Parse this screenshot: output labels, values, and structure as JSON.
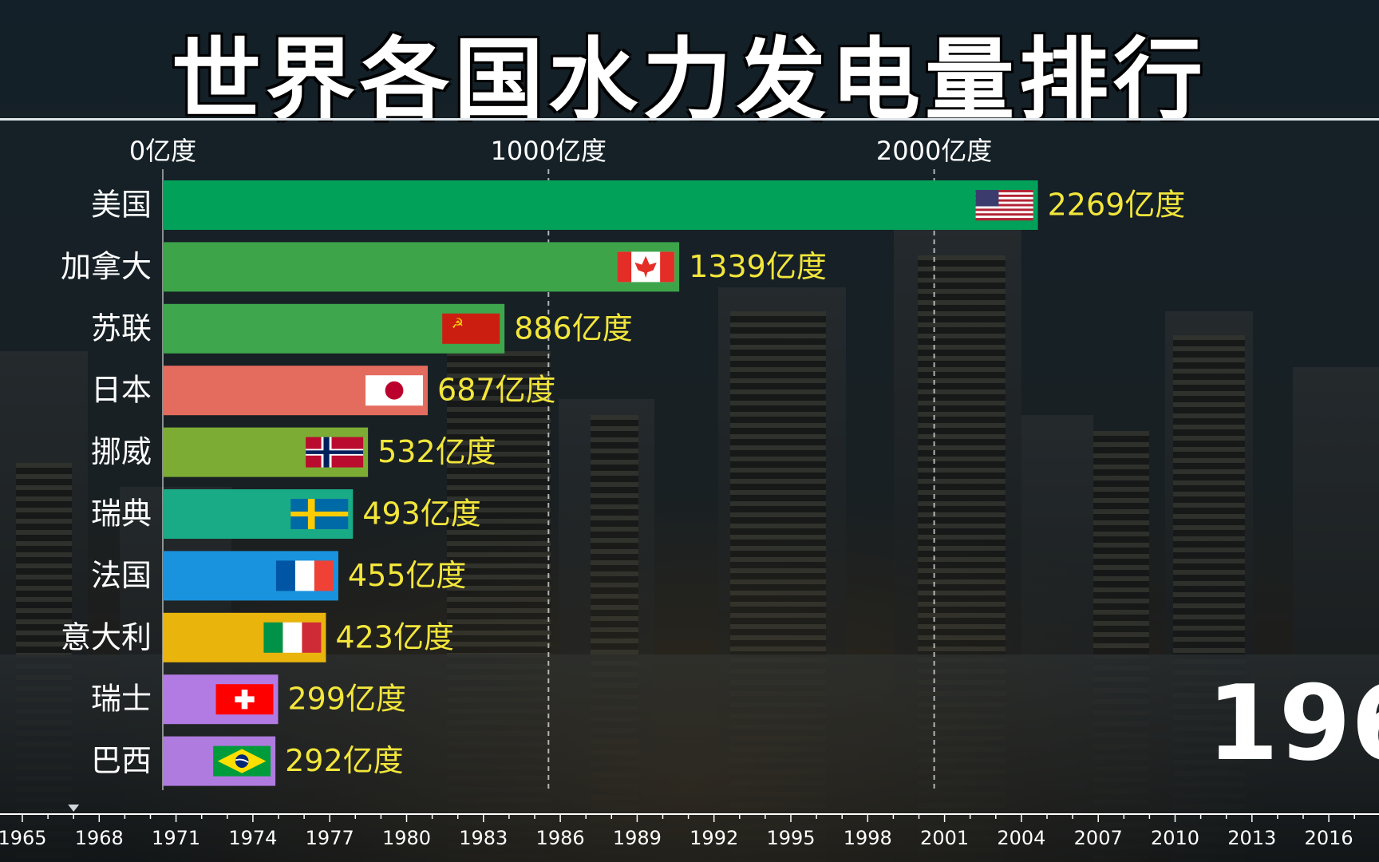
{
  "title": "世界各国水力发电量排行",
  "year": "196",
  "unit": "亿度",
  "chart_data": {
    "type": "bar",
    "title": "世界各国水力发电量排行",
    "orientation": "horizontal",
    "xlabel": "",
    "ylabel": "",
    "xlim": [
      0,
      2500
    ],
    "x_ticks": [
      {
        "value": 0,
        "label": "0亿度"
      },
      {
        "value": 1000,
        "label": "1000亿度"
      },
      {
        "value": 2000,
        "label": "2000亿度"
      }
    ],
    "categories": [
      "美国",
      "加拿大",
      "苏联",
      "日本",
      "挪威",
      "瑞典",
      "法国",
      "意大利",
      "瑞士",
      "巴西"
    ],
    "values": [
      2269,
      1339,
      886,
      687,
      532,
      493,
      455,
      423,
      299,
      292
    ],
    "value_labels": [
      "2269亿度",
      "1339亿度",
      "886亿度",
      "687亿度",
      "532亿度",
      "493亿度",
      "455亿度",
      "423亿度",
      "299亿度",
      "292亿度"
    ],
    "bar_colors": [
      "#02a159",
      "#3da44a",
      "#3ea64c",
      "#e46c5e",
      "#7cac34",
      "#19ab86",
      "#1a93de",
      "#e9b40c",
      "#b27be3",
      "#b07bdf"
    ],
    "flags": [
      "flag-usa",
      "flag-canada",
      "flag-ussr",
      "flag-japan",
      "flag-norway",
      "flag-sweden",
      "flag-france",
      "flag-italy",
      "flag-switzerland",
      "flag-brazil"
    ],
    "grid": true,
    "grid_style": "dashed vertical"
  },
  "timeline": {
    "years": [
      "1965",
      "1968",
      "1971",
      "1974",
      "1977",
      "1980",
      "1983",
      "1986",
      "1989",
      "1992",
      "1995",
      "1998",
      "2001",
      "2004",
      "2007",
      "2010",
      "2013",
      "2016"
    ],
    "start": 1965,
    "end": 2018,
    "current": 1967
  }
}
